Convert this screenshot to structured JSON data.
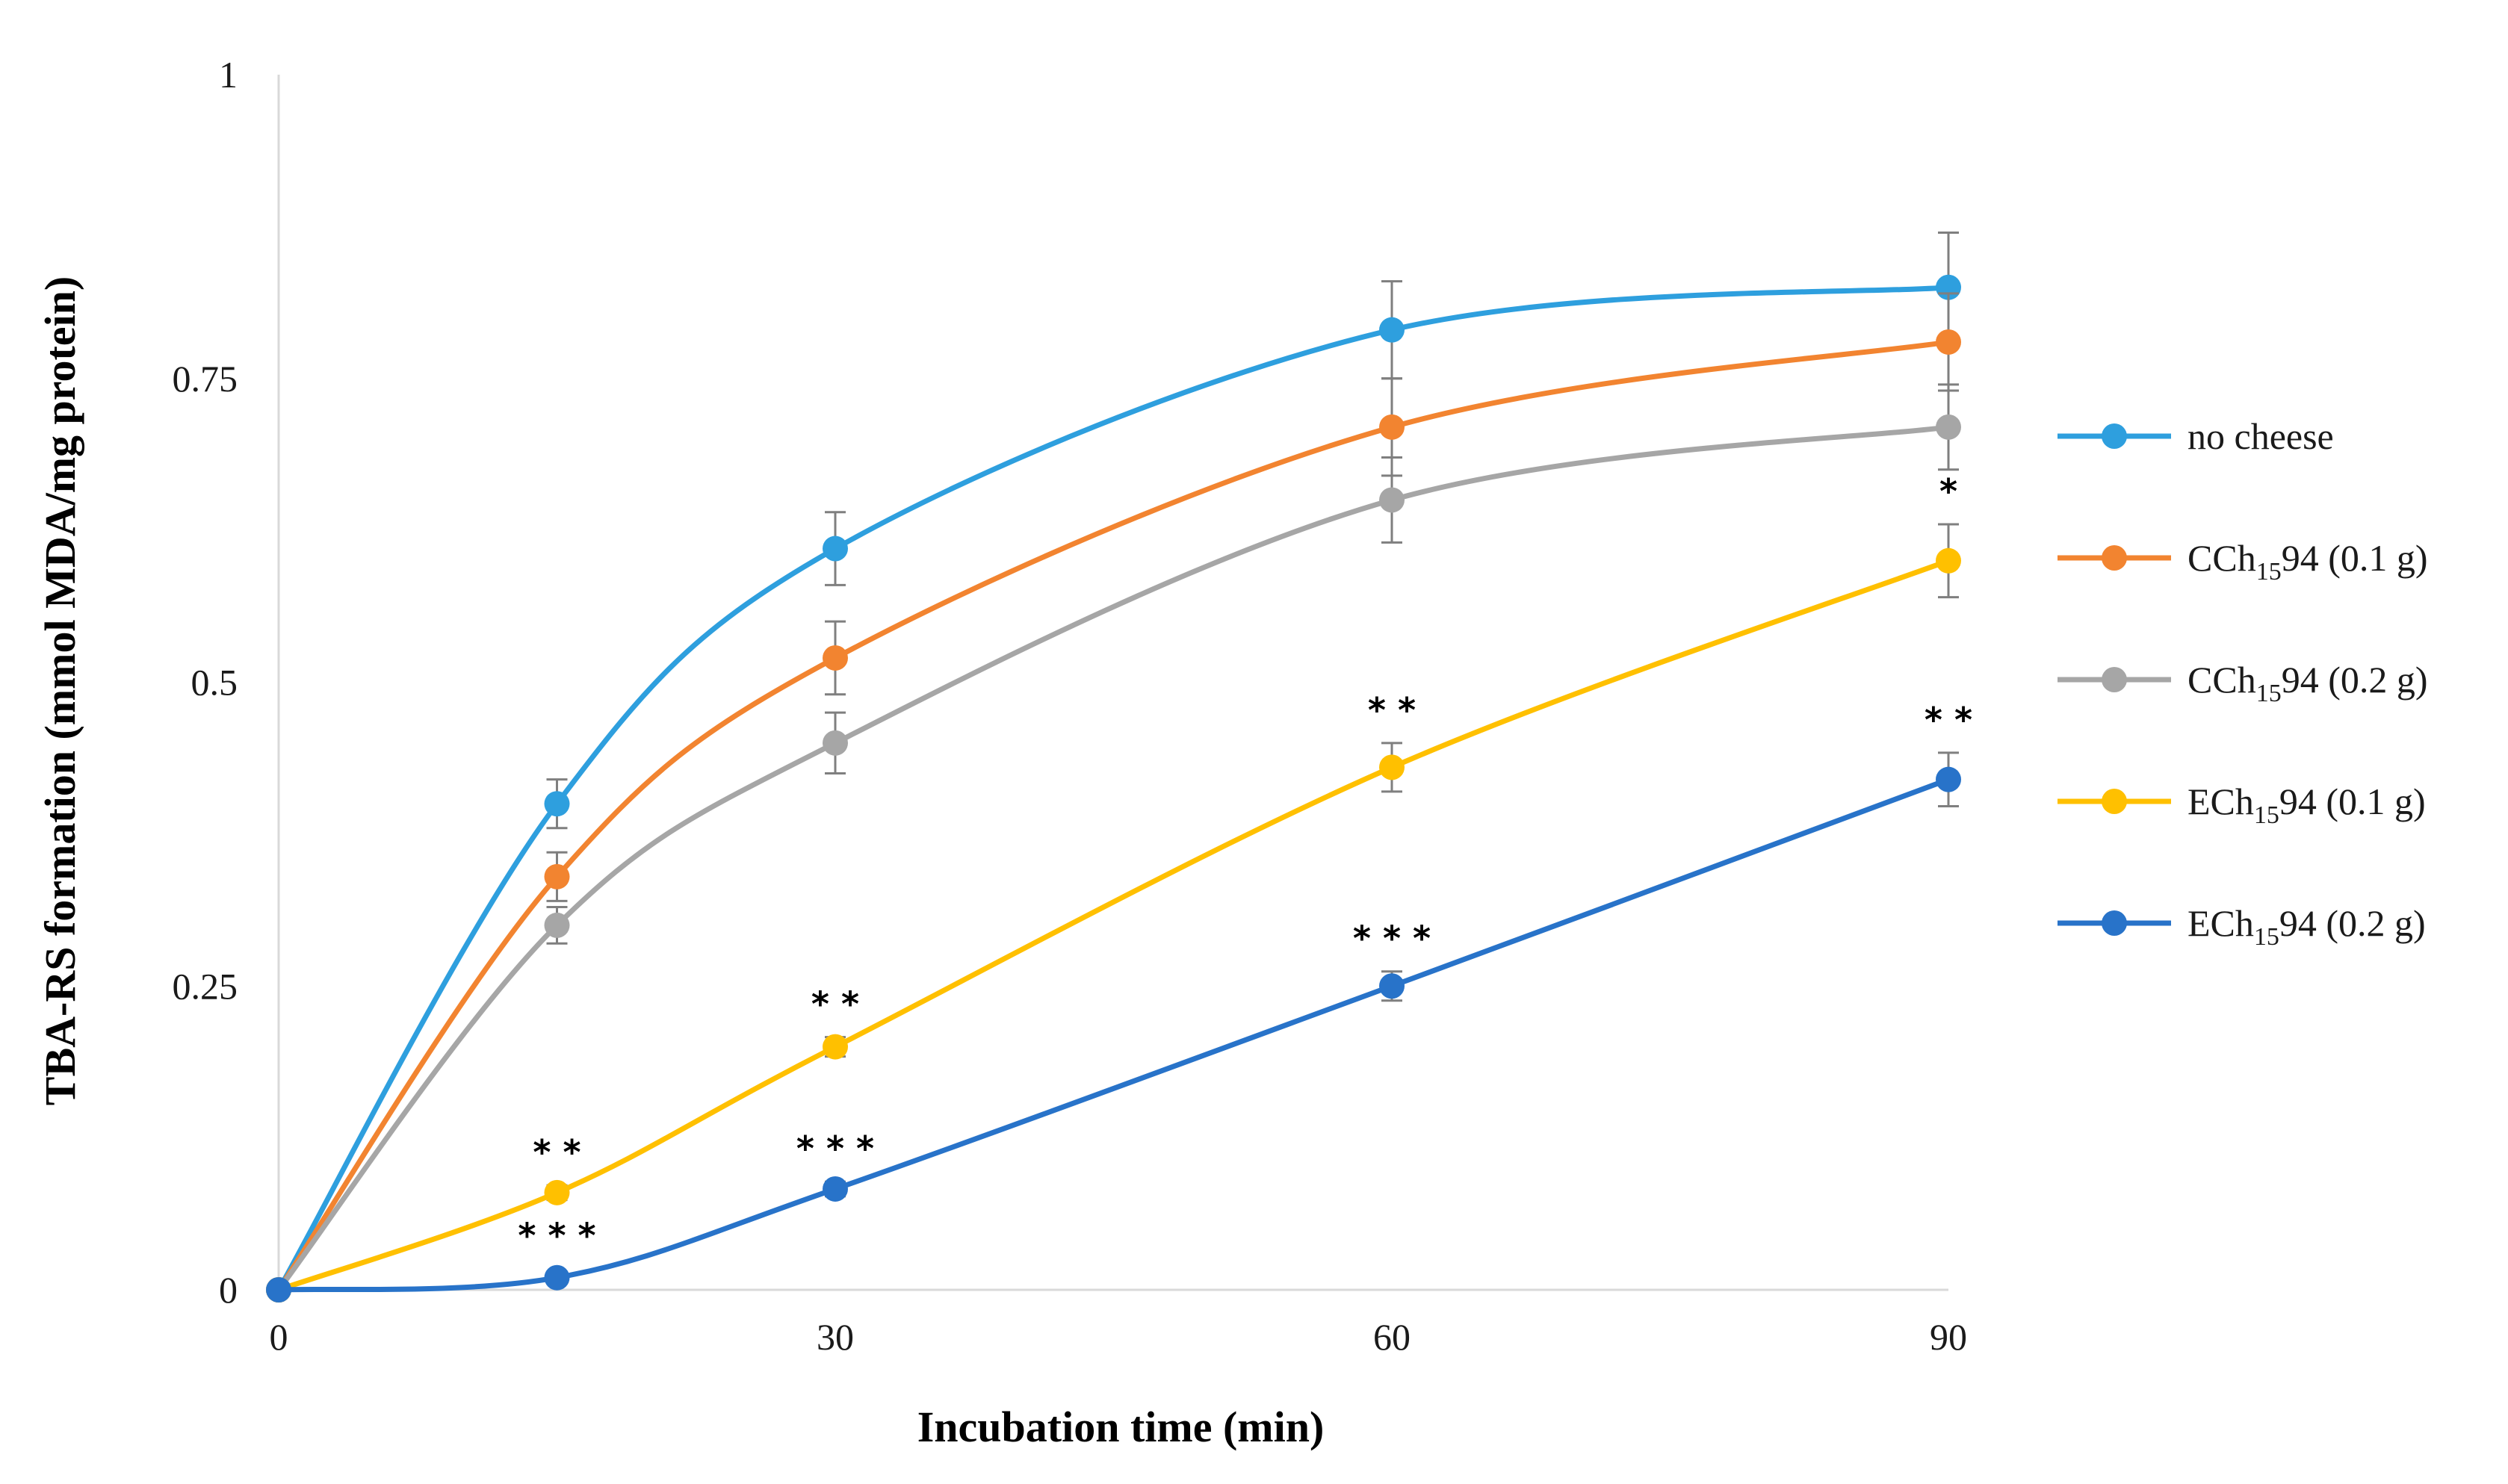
{
  "chart_data": {
    "type": "line",
    "title": "",
    "xlabel": "Incubation time (min)",
    "ylabel": "TBA-RS formation (mmol MDA/mg protein)",
    "x": [
      0,
      15,
      30,
      60,
      90
    ],
    "xlim": [
      0,
      90
    ],
    "ylim": [
      0,
      1
    ],
    "xticks": [
      0,
      30,
      60,
      90
    ],
    "xtick_labels": [
      "0",
      "30",
      "60",
      "90"
    ],
    "yticks": [
      0,
      0.25,
      0.5,
      0.75,
      1
    ],
    "ytick_labels": [
      "0",
      "0.25",
      "0.5",
      "0.75",
      "1"
    ],
    "grid": false,
    "legend_position": "right",
    "series": [
      {
        "name": "no cheese",
        "label_main": "no cheese",
        "label_sub": "",
        "label_tail": "",
        "color": "#2E9FDE",
        "values": [
          0,
          0.4,
          0.61,
          0.79,
          0.825
        ],
        "errors": [
          0,
          0.02,
          0.03,
          0.04,
          0.045
        ],
        "significance": [
          "",
          "",
          "",
          "",
          ""
        ]
      },
      {
        "name": "CCh15 94 (0.1 g)",
        "label_main": "CCh",
        "label_sub": "15",
        "label_tail": "94 (0.1 g)",
        "color": "#F28430",
        "values": [
          0,
          0.34,
          0.52,
          0.71,
          0.78
        ],
        "errors": [
          0,
          0.02,
          0.03,
          0.04,
          0.04
        ],
        "significance": [
          "",
          "",
          "",
          "",
          ""
        ]
      },
      {
        "name": "CCh15 94 (0.2 g)",
        "label_main": "CCh",
        "label_sub": "15",
        "label_tail": "94 (0.2 g)",
        "color": "#A6A6A6",
        "values": [
          0,
          0.3,
          0.45,
          0.65,
          0.71
        ],
        "errors": [
          0,
          0.015,
          0.025,
          0.035,
          0.035
        ],
        "significance": [
          "",
          "",
          "",
          "",
          ""
        ]
      },
      {
        "name": "ECh15 94 (0.1 g)",
        "label_main": "ECh",
        "label_sub": "15",
        "label_tail": "94 (0.1 g)",
        "color": "#FFC000",
        "values": [
          0,
          0.08,
          0.2,
          0.43,
          0.6
        ],
        "errors": [
          0,
          0.006,
          0.008,
          0.02,
          0.03
        ],
        "significance": [
          "",
          "* *",
          "* *",
          "* *",
          "*"
        ]
      },
      {
        "name": "ECh15 94 (0.2 g)",
        "label_main": "ECh",
        "label_sub": "15",
        "label_tail": "94 (0.2 g)",
        "color": "#2873C9",
        "values": [
          0,
          0.01,
          0.083,
          0.25,
          0.42
        ],
        "errors": [
          0,
          0.005,
          0.006,
          0.012,
          0.022
        ],
        "significance": [
          "",
          "* * *",
          "* * *",
          "* * *",
          "* *"
        ]
      }
    ]
  }
}
